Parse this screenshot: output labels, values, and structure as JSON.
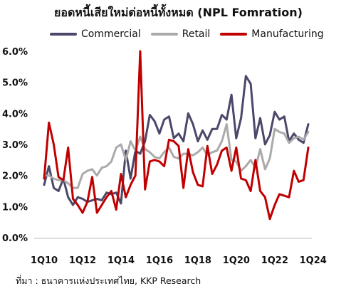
{
  "chart_data": {
    "type": "line",
    "title": "ยอดหนี้เสียใหม่ต่อหนี้ทั้งหมด (NPL Fomration)",
    "source": "ที่มา : ธนาคารแห่งประเทศไทย, KKP Research",
    "xlabel": "",
    "ylabel": "",
    "ylim": [
      0,
      6
    ],
    "y_ticks": [
      "0.0%",
      "1.0%",
      "2.0%",
      "3.0%",
      "4.0%",
      "5.0%",
      "6.0%"
    ],
    "x_tick_labels": [
      "1Q10",
      "1Q12",
      "1Q14",
      "1Q16",
      "1Q18",
      "1Q20",
      "1Q22",
      "1Q24"
    ],
    "x_tick_positions": [
      1,
      9,
      17,
      25,
      33,
      41,
      49,
      57
    ],
    "legend_position": "top",
    "grid": false,
    "colors": {
      "Commercial": "#4b4869",
      "Retail": "#aaaaaa",
      "Manufacturing": "#c00000"
    },
    "series": [
      {
        "name": "Commercial",
        "values": [
          1.7,
          2.3,
          1.6,
          1.5,
          1.9,
          1.3,
          1.05,
          1.3,
          1.25,
          1.15,
          1.2,
          1.25,
          1.2,
          1.45,
          1.4,
          1.45,
          1.1,
          2.8,
          1.9,
          2.8,
          2.7,
          3.1,
          3.95,
          3.75,
          3.35,
          3.8,
          3.9,
          3.2,
          3.35,
          3.1,
          4.0,
          3.65,
          3.1,
          3.45,
          3.15,
          3.5,
          3.5,
          3.95,
          3.8,
          4.6,
          3.2,
          3.85,
          5.2,
          4.95,
          3.2,
          3.85,
          3.0,
          3.3,
          4.05,
          3.8,
          3.9,
          3.1,
          3.35,
          3.15,
          3.05,
          3.65
        ]
      },
      {
        "name": "Retail",
        "values": [
          2.0,
          2.0,
          1.9,
          1.85,
          1.85,
          1.75,
          1.6,
          1.6,
          2.05,
          2.15,
          2.2,
          2.0,
          2.25,
          2.3,
          2.45,
          2.9,
          3.0,
          2.5,
          3.1,
          2.8,
          3.25,
          2.85,
          2.75,
          2.6,
          2.55,
          2.75,
          2.9,
          2.6,
          2.55,
          2.7,
          2.7,
          2.65,
          2.75,
          2.9,
          2.65,
          2.75,
          2.8,
          3.1,
          3.65,
          2.5,
          2.45,
          2.15,
          2.3,
          2.5,
          2.25,
          2.85,
          2.2,
          2.55,
          3.5,
          3.4,
          3.35,
          3.05,
          3.2,
          3.25,
          3.15,
          3.4
        ]
      },
      {
        "name": "Manufacturing",
        "values": [
          1.9,
          3.7,
          3.0,
          1.95,
          1.85,
          2.9,
          1.25,
          1.05,
          0.8,
          1.15,
          1.95,
          0.8,
          1.05,
          1.3,
          1.5,
          0.9,
          2.05,
          1.3,
          1.7,
          2.0,
          6.0,
          1.55,
          2.45,
          2.5,
          2.45,
          2.3,
          3.15,
          3.1,
          2.95,
          1.6,
          2.85,
          2.1,
          1.7,
          1.65,
          2.95,
          2.05,
          2.35,
          2.8,
          2.9,
          2.15,
          2.9,
          1.9,
          1.85,
          1.5,
          2.5,
          1.5,
          1.3,
          0.6,
          1.05,
          1.4,
          1.35,
          1.3,
          2.15,
          1.8,
          1.85,
          2.9
        ]
      }
    ]
  }
}
